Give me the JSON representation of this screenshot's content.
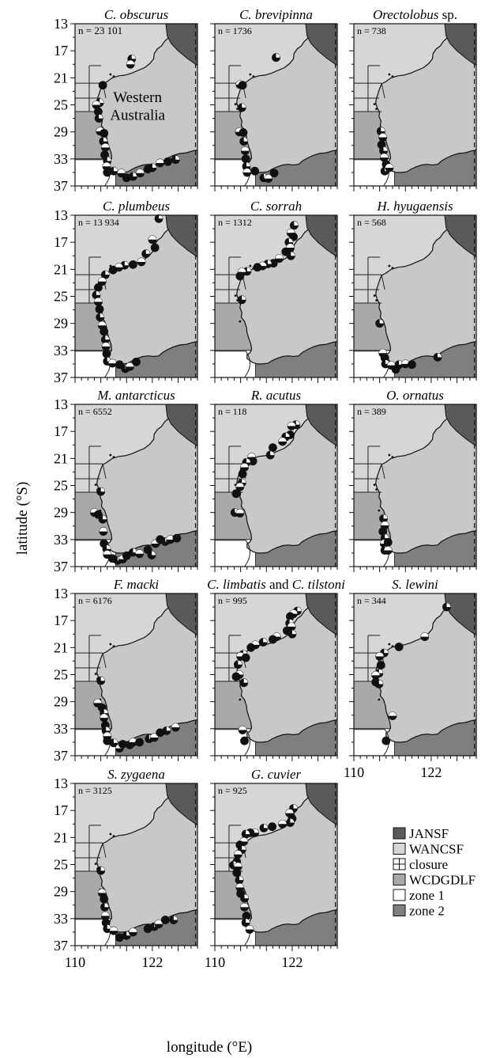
{
  "figure": {
    "y_axis_label": "latitude (°S)",
    "x_axis_label": "longitude (°E)",
    "region_label_line1": "Western",
    "region_label_line2": "Australia"
  },
  "legend": [
    {
      "label": "JANSF",
      "color": "#5a5a5a",
      "pattern": "solid"
    },
    {
      "label": "WANCSF",
      "color": "#d6d6d6",
      "pattern": "solid"
    },
    {
      "label": "closure",
      "color": "#ffffff",
      "pattern": "cross"
    },
    {
      "label": "WCDGDLF",
      "color": "#a9a9a9",
      "pattern": "solid"
    },
    {
      "label": "zone 1",
      "color": "#ffffff",
      "pattern": "solid"
    },
    {
      "label": "zone 2",
      "color": "#7f7f7f",
      "pattern": "solid"
    }
  ],
  "colors": {
    "land": "#c8c8c8",
    "jansf": "#5a5a5a",
    "wancsf": "#d6d6d6",
    "wcdgdlf": "#a9a9a9",
    "zone1": "#ffffff",
    "zone2": "#7f7f7f",
    "marker_dark": "#111111",
    "marker_light": "#ffffff"
  },
  "chart_data": {
    "type": "scatter",
    "xlim": [
      110,
      129
    ],
    "ylim": [
      37,
      13
    ],
    "x_ticks": [
      "110",
      "122"
    ],
    "y_ticks": [
      "13",
      "17",
      "21",
      "25",
      "29",
      "33",
      "37"
    ],
    "panels": [
      {
        "name": "C. obscurus",
        "title_parts": [
          {
            "text": "C. obscurus",
            "italic": true
          }
        ],
        "n": "n = 23 101",
        "points": [
          [
            118.8,
            18.2
          ],
          [
            118.6,
            19.0
          ],
          [
            114.3,
            22.1
          ],
          [
            113.8,
            24.7
          ],
          [
            113.3,
            25.0
          ],
          [
            113.6,
            26.0
          ],
          [
            113.7,
            27.0
          ],
          [
            113.9,
            28.9
          ],
          [
            114.5,
            29.2
          ],
          [
            114.4,
            30.4
          ],
          [
            114.7,
            31.3
          ],
          [
            114.6,
            32.4
          ],
          [
            115.0,
            33.3
          ],
          [
            114.9,
            34.1
          ],
          [
            115.0,
            35.0
          ],
          [
            116.0,
            34.8
          ],
          [
            117.2,
            35.1
          ],
          [
            118.0,
            35.8
          ],
          [
            119.0,
            35.6
          ],
          [
            120.1,
            35.1
          ],
          [
            121.3,
            34.5
          ],
          [
            122.0,
            34.3
          ],
          [
            123.2,
            33.6
          ],
          [
            124.4,
            33.4
          ],
          [
            125.6,
            33.1
          ]
        ]
      },
      {
        "name": "C. brevipinna",
        "title_parts": [
          {
            "text": "C. brevipinna",
            "italic": true
          }
        ],
        "n": "n = 1736",
        "points": [
          [
            119.5,
            18.0
          ],
          [
            113.9,
            22.0
          ],
          [
            114.3,
            22.1
          ],
          [
            114.2,
            25.4
          ],
          [
            113.8,
            29.0
          ],
          [
            114.4,
            29.1
          ],
          [
            114.5,
            30.4
          ],
          [
            114.7,
            31.8
          ],
          [
            114.8,
            33.0
          ],
          [
            114.9,
            34.1
          ],
          [
            115.0,
            35.0
          ],
          [
            116.2,
            34.8
          ],
          [
            117.6,
            35.8
          ],
          [
            118.3,
            35.9
          ],
          [
            119.2,
            35.1
          ]
        ]
      },
      {
        "name": "Orectolobus sp.",
        "title_parts": [
          {
            "text": "Orectolobus",
            "italic": true
          },
          {
            "text": " sp.",
            "italic": false
          }
        ],
        "n": "n = 738",
        "points": [
          [
            114.2,
            28.9
          ],
          [
            114.5,
            29.8
          ],
          [
            114.3,
            30.9
          ],
          [
            114.6,
            31.8
          ],
          [
            114.7,
            32.8
          ],
          [
            115.0,
            33.8
          ],
          [
            114.8,
            34.8
          ],
          [
            115.5,
            34.3
          ]
        ]
      },
      {
        "name": "C. plumbeus",
        "title_parts": [
          {
            "text": "C. plumbeus",
            "italic": true
          }
        ],
        "n": "n = 13 934",
        "points": [
          [
            123.0,
            13.5
          ],
          [
            122.0,
            16.6
          ],
          [
            122.4,
            17.8
          ],
          [
            121.0,
            18.7
          ],
          [
            120.3,
            19.9
          ],
          [
            119.0,
            20.3
          ],
          [
            117.7,
            20.4
          ],
          [
            116.8,
            20.7
          ],
          [
            115.9,
            21.1
          ],
          [
            114.7,
            21.8
          ],
          [
            114.2,
            22.8
          ],
          [
            113.6,
            23.7
          ],
          [
            113.3,
            24.8
          ],
          [
            113.6,
            25.8
          ],
          [
            113.8,
            26.9
          ],
          [
            113.9,
            28.1
          ],
          [
            114.2,
            29.3
          ],
          [
            114.5,
            30.2
          ],
          [
            114.7,
            31.4
          ],
          [
            114.8,
            32.4
          ],
          [
            114.9,
            33.5
          ],
          [
            115.0,
            34.6
          ],
          [
            115.8,
            34.9
          ],
          [
            116.9,
            35.1
          ],
          [
            117.8,
            35.7
          ],
          [
            118.5,
            35.4
          ],
          [
            119.5,
            34.7
          ]
        ]
      },
      {
        "name": "C. sorrah",
        "title_parts": [
          {
            "text": "C. sorrah",
            "italic": true
          }
        ],
        "n": "n = 1312",
        "points": [
          [
            122.3,
            14.5
          ],
          [
            121.8,
            15.6
          ],
          [
            122.2,
            16.2
          ],
          [
            121.5,
            17.0
          ],
          [
            121.7,
            17.8
          ],
          [
            121.0,
            18.4
          ],
          [
            121.8,
            19.0
          ],
          [
            120.0,
            19.4
          ],
          [
            119.1,
            20.1
          ],
          [
            118.2,
            20.2
          ],
          [
            117.4,
            20.5
          ],
          [
            116.6,
            20.7
          ],
          [
            115.0,
            21.3
          ],
          [
            114.2,
            21.4
          ],
          [
            113.9,
            22.0
          ],
          [
            114.2,
            25.5
          ]
        ]
      },
      {
        "name": "H. hyugaensis",
        "title_parts": [
          {
            "text": "H. hyugaensis",
            "italic": true
          }
        ],
        "n": "n = 568",
        "points": [
          [
            114.0,
            29.0
          ],
          [
            114.5,
            33.4
          ],
          [
            114.8,
            34.1
          ],
          [
            114.9,
            35.0
          ],
          [
            115.8,
            35.2
          ],
          [
            116.5,
            35.8
          ],
          [
            117.0,
            35.1
          ],
          [
            118.0,
            35.0
          ],
          [
            119.0,
            35.1
          ],
          [
            123.0,
            34.0
          ]
        ]
      },
      {
        "name": "M. antarcticus",
        "title_parts": [
          {
            "text": "M. antarcticus",
            "italic": true
          }
        ],
        "n": "n = 6552",
        "points": [
          [
            114.0,
            25.9
          ],
          [
            113.0,
            29.0
          ],
          [
            113.6,
            29.3
          ],
          [
            114.3,
            30.0
          ],
          [
            114.4,
            31.8
          ],
          [
            114.5,
            33.6
          ],
          [
            114.9,
            34.4
          ],
          [
            115.0,
            35.2
          ],
          [
            115.8,
            35.8
          ],
          [
            116.6,
            36.1
          ],
          [
            117.4,
            35.9
          ],
          [
            118.0,
            35.4
          ],
          [
            119.0,
            34.9
          ],
          [
            120.0,
            35.1
          ],
          [
            121.3,
            34.5
          ],
          [
            121.9,
            35.3
          ],
          [
            122.5,
            33.6
          ],
          [
            123.2,
            33.0
          ],
          [
            124.0,
            33.3
          ],
          [
            124.8,
            33.0
          ],
          [
            125.8,
            32.8
          ]
        ]
      },
      {
        "name": "R. acutus",
        "title_parts": [
          {
            "text": "R. acutus",
            "italic": true
          }
        ],
        "n": "n = 118",
        "points": [
          [
            122.6,
            16.0
          ],
          [
            121.9,
            16.2
          ],
          [
            121.7,
            17.5
          ],
          [
            121.0,
            17.8
          ],
          [
            120.5,
            18.5
          ],
          [
            119.0,
            19.4
          ],
          [
            118.6,
            20.5
          ],
          [
            115.7,
            20.8
          ],
          [
            115.9,
            21.4
          ],
          [
            114.9,
            21.6
          ],
          [
            114.6,
            22.3
          ],
          [
            114.3,
            23.3
          ],
          [
            114.2,
            24.6
          ],
          [
            113.9,
            25.2
          ],
          [
            113.3,
            26.2
          ],
          [
            113.1,
            29.0
          ],
          [
            113.9,
            29.1
          ]
        ]
      },
      {
        "name": "O. ornatus",
        "title_parts": [
          {
            "text": "O. ornatus",
            "italic": true
          }
        ],
        "n": "n = 389",
        "points": [
          [
            114.6,
            29.9
          ],
          [
            114.8,
            30.9
          ],
          [
            114.5,
            31.8
          ],
          [
            114.8,
            32.8
          ],
          [
            114.7,
            33.6
          ],
          [
            115.3,
            33.4
          ],
          [
            114.8,
            34.6
          ],
          [
            115.3,
            34.6
          ]
        ]
      },
      {
        "name": "F. macki",
        "title_parts": [
          {
            "text": "F. macki",
            "italic": true
          }
        ],
        "n": "n = 6176",
        "points": [
          [
            114.0,
            25.9
          ],
          [
            113.5,
            29.2
          ],
          [
            114.2,
            29.9
          ],
          [
            114.5,
            30.7
          ],
          [
            114.5,
            31.4
          ],
          [
            114.7,
            32.5
          ],
          [
            114.8,
            33.3
          ],
          [
            115.0,
            34.1
          ],
          [
            115.0,
            34.8
          ],
          [
            116.0,
            35.1
          ],
          [
            116.9,
            35.9
          ],
          [
            117.4,
            35.3
          ],
          [
            118.5,
            35.4
          ],
          [
            119.0,
            35.0
          ],
          [
            120.0,
            35.0
          ],
          [
            121.5,
            34.5
          ],
          [
            122.3,
            34.3
          ],
          [
            123.2,
            33.6
          ],
          [
            124.2,
            33.3
          ],
          [
            125.6,
            32.8
          ]
        ]
      },
      {
        "name": "C. limbatis and C. tilstoni",
        "title_parts": [
          {
            "text": "C. limbatis",
            "italic": true
          },
          {
            "text": " and ",
            "italic": false
          },
          {
            "text": "C. tilstoni",
            "italic": true
          }
        ],
        "n": "n = 995",
        "points": [
          [
            122.8,
            15.6
          ],
          [
            122.2,
            16.0
          ],
          [
            121.7,
            16.4
          ],
          [
            121.6,
            17.4
          ],
          [
            121.9,
            17.9
          ],
          [
            121.2,
            18.5
          ],
          [
            122.0,
            19.0
          ],
          [
            119.6,
            19.4
          ],
          [
            119.0,
            19.8
          ],
          [
            117.5,
            20.2
          ],
          [
            116.3,
            20.6
          ],
          [
            115.6,
            21.0
          ],
          [
            114.4,
            22.0
          ],
          [
            114.0,
            22.3
          ],
          [
            114.8,
            22.5
          ],
          [
            113.6,
            23.5
          ],
          [
            113.8,
            25.0
          ],
          [
            113.3,
            25.3
          ],
          [
            114.5,
            26.2
          ],
          [
            114.3,
            33.2
          ],
          [
            114.6,
            34.8
          ]
        ]
      },
      {
        "name": "S. lewini",
        "title_parts": [
          {
            "text": "S. lewini",
            "italic": true
          }
        ],
        "n": "n = 344",
        "points": [
          [
            124.4,
            15.0
          ],
          [
            121.0,
            19.4
          ],
          [
            117.0,
            20.9
          ],
          [
            114.7,
            21.8
          ],
          [
            114.0,
            22.3
          ],
          [
            114.2,
            23.6
          ],
          [
            113.9,
            24.8
          ],
          [
            113.4,
            25.1
          ],
          [
            113.4,
            26.1
          ],
          [
            113.9,
            26.4
          ],
          [
            116.0,
            31.1
          ],
          [
            115.0,
            34.8
          ]
        ]
      },
      {
        "name": "S. zygaena",
        "title_parts": [
          {
            "text": "S. zygaena",
            "italic": true
          }
        ],
        "n": "n = 3125",
        "points": [
          [
            114.0,
            25.9
          ],
          [
            114.2,
            29.2
          ],
          [
            114.5,
            30.1
          ],
          [
            114.6,
            31.3
          ],
          [
            114.7,
            32.6
          ],
          [
            114.8,
            33.6
          ],
          [
            115.0,
            34.5
          ],
          [
            116.0,
            34.8
          ],
          [
            116.9,
            35.8
          ],
          [
            118.0,
            35.5
          ],
          [
            119.0,
            35.0
          ],
          [
            121.3,
            34.5
          ],
          [
            122.3,
            34.2
          ],
          [
            123.0,
            33.8
          ],
          [
            124.0,
            33.2
          ],
          [
            125.3,
            33.2
          ]
        ]
      },
      {
        "name": "G. cuvier",
        "title_parts": [
          {
            "text": "G. cuvier",
            "italic": true
          }
        ],
        "n": "n = 925",
        "points": [
          [
            122.2,
            16.7
          ],
          [
            121.6,
            17.4
          ],
          [
            122.0,
            18.2
          ],
          [
            121.7,
            18.8
          ],
          [
            120.5,
            19.0
          ],
          [
            118.9,
            19.4
          ],
          [
            117.6,
            19.6
          ],
          [
            116.2,
            20.3
          ],
          [
            115.5,
            20.3
          ],
          [
            114.8,
            20.5
          ],
          [
            114.5,
            21.6
          ],
          [
            113.9,
            22.1
          ],
          [
            114.2,
            22.8
          ],
          [
            113.6,
            23.5
          ],
          [
            113.4,
            24.6
          ],
          [
            112.9,
            25.1
          ],
          [
            113.6,
            25.3
          ],
          [
            113.4,
            26.2
          ],
          [
            113.8,
            27.3
          ],
          [
            113.9,
            28.4
          ],
          [
            114.0,
            29.3
          ],
          [
            114.6,
            30.0
          ],
          [
            114.6,
            31.3
          ],
          [
            114.9,
            32.6
          ],
          [
            114.8,
            33.6
          ],
          [
            115.4,
            34.6
          ]
        ]
      }
    ]
  }
}
